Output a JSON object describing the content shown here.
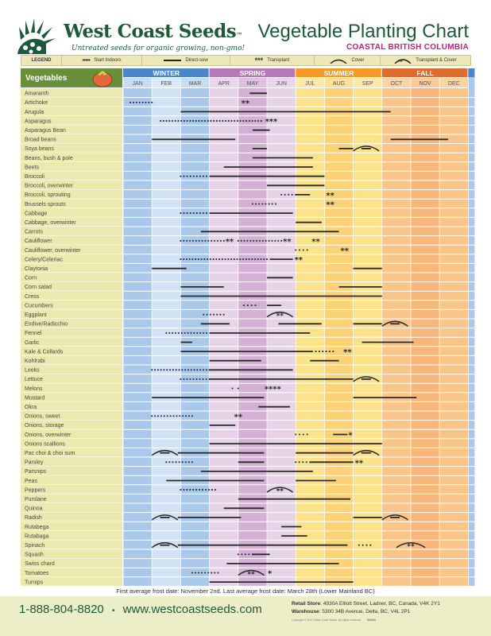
{
  "brand": {
    "name": "West Coast Seeds",
    "trademark": "™",
    "tagline": "Untreated seeds for organic growing, non-gmo!"
  },
  "header": {
    "title": "Vegetable Planting Chart",
    "subtitle": "COASTAL BRITISH COLUMBIA"
  },
  "legend": {
    "label": "LEGEND",
    "items": [
      {
        "symbol": "dots",
        "label": "Start Indoors"
      },
      {
        "symbol": "line",
        "label": "Direct-sow"
      },
      {
        "symbol": "asterisks",
        "label": "Transplant"
      },
      {
        "symbol": "arc",
        "label": "Cover"
      },
      {
        "symbol": "arc-asterisks",
        "label": "Transplant & Cover"
      }
    ]
  },
  "colors": {
    "brand_green": "#1e5a3a",
    "header_green": "#6a8f3a",
    "subtitle_magenta": "#b5247a",
    "winter": "#4a86c8",
    "spring": "#b47ab5",
    "summer": "#f39a2a",
    "fall": "#de6b2f"
  },
  "footer": {
    "frost_note": "First average frost date: November 2nd. Last average frost date: March 28th (Lower Mainland BC)",
    "phone": "1-888-804-8820",
    "separator": "•",
    "website": "www.westcoastseeds.com",
    "retail_label": "Retail Store",
    "retail_address": ": 4930A Elliott Street, Ladner, BC, Canada, V4K 2Y1",
    "warehouse_label": "Warehouse",
    "warehouse_address": ": 5300 34B Avenue, Delta, BC, V4L 2P1",
    "copyright": "Copyright © 2017 West Coast Seeds. All rights reserved.",
    "code": "SM400"
  },
  "chart_data": {
    "type": "table",
    "title": "Vegetable Planting Chart",
    "column_header": "Vegetables",
    "seasons": [
      {
        "name": "WINTER",
        "months": [
          "JAN",
          "FEB",
          "MAR"
        ]
      },
      {
        "name": "SPRING",
        "months": [
          "APR",
          "MAY",
          "JUN"
        ]
      },
      {
        "name": "SUMMER",
        "months": [
          "JUL",
          "AUG",
          "SEP"
        ]
      },
      {
        "name": "FALL",
        "months": [
          "OCT",
          "NOV",
          "DEC"
        ]
      }
    ],
    "months": [
      "JAN",
      "FEB",
      "MAR",
      "APR",
      "MAY",
      "JUN",
      "JUL",
      "AUG",
      "SEP",
      "OCT",
      "NOV",
      "DEC"
    ],
    "units": "month index (0 = start of Jan, 12 = end of Dec)",
    "rows": [
      {
        "name": "Amaranth",
        "marks": [
          {
            "t": "line",
            "s": 4.4,
            "e": 5.0
          }
        ]
      },
      {
        "name": "Artichoke",
        "marks": [
          {
            "t": "dots",
            "s": 0.25,
            "e": 1.0
          },
          {
            "t": "ast",
            "s": 4.1,
            "e": 4.4,
            "n": 2
          }
        ]
      },
      {
        "name": "Arugula",
        "marks": [
          {
            "t": "line",
            "s": 2.0,
            "e": 9.3
          }
        ]
      },
      {
        "name": "Asparagus",
        "marks": [
          {
            "t": "dots",
            "s": 1.3,
            "e": 4.8
          },
          {
            "t": "ast",
            "s": 4.9,
            "e": 5.4,
            "n": 3
          }
        ]
      },
      {
        "name": "Asparagus Bean",
        "marks": [
          {
            "t": "line",
            "s": 4.5,
            "e": 5.1
          }
        ]
      },
      {
        "name": "Broad beans",
        "marks": [
          {
            "t": "line",
            "s": 1.0,
            "e": 3.9
          },
          {
            "t": "line",
            "s": 9.3,
            "e": 11.3
          }
        ]
      },
      {
        "name": "Soya beans",
        "marks": [
          {
            "t": "line",
            "s": 4.5,
            "e": 5.0
          },
          {
            "t": "line",
            "s": 7.5,
            "e": 8.0
          },
          {
            "t": "cover",
            "s": 8.0,
            "e": 8.9
          }
        ]
      },
      {
        "name": "Beans, bush & pole",
        "marks": [
          {
            "t": "line",
            "s": 4.5,
            "e": 6.6
          }
        ]
      },
      {
        "name": "Beets",
        "marks": [
          {
            "t": "line",
            "s": 3.5,
            "e": 6.6
          }
        ]
      },
      {
        "name": "Broccoli",
        "marks": [
          {
            "t": "dots",
            "s": 2.0,
            "e": 2.9
          },
          {
            "t": "line",
            "s": 3.0,
            "e": 7.0
          }
        ]
      },
      {
        "name": "Broccoli, overwinter",
        "marks": [
          {
            "t": "line",
            "s": 5.0,
            "e": 7.0
          }
        ]
      },
      {
        "name": "Broccoli, sprouting",
        "marks": [
          {
            "t": "dots",
            "s": 5.5,
            "e": 6.0
          },
          {
            "t": "line",
            "s": 6.0,
            "e": 6.5
          },
          {
            "t": "ast",
            "s": 7.0,
            "e": 7.4,
            "n": 2
          }
        ]
      },
      {
        "name": "Brussels sprouts",
        "marks": [
          {
            "t": "dots",
            "s": 4.5,
            "e": 5.3
          },
          {
            "t": "ast",
            "s": 7.0,
            "e": 7.4,
            "n": 2
          }
        ]
      },
      {
        "name": "Cabbage",
        "marks": [
          {
            "t": "dots",
            "s": 2.0,
            "e": 2.9
          },
          {
            "t": "line",
            "s": 3.0,
            "e": 5.9
          }
        ]
      },
      {
        "name": "Cabbage, overwinter",
        "marks": [
          {
            "t": "line",
            "s": 6.0,
            "e": 6.9
          }
        ]
      },
      {
        "name": "Carrots",
        "marks": [
          {
            "t": "line",
            "s": 2.7,
            "e": 7.5
          }
        ]
      },
      {
        "name": "Cauliflower",
        "marks": [
          {
            "t": "dots",
            "s": 2.0,
            "e": 3.5
          },
          {
            "t": "ast",
            "s": 3.5,
            "e": 3.9,
            "n": 2
          },
          {
            "t": "dots",
            "s": 4.0,
            "e": 5.5
          },
          {
            "t": "ast",
            "s": 5.5,
            "e": 5.9,
            "n": 2
          },
          {
            "t": "ast",
            "s": 6.5,
            "e": 6.9,
            "n": 2
          }
        ]
      },
      {
        "name": "Cauliflower, overwinter",
        "marks": [
          {
            "t": "dots",
            "s": 6.0,
            "e": 6.4
          },
          {
            "t": "ast",
            "s": 7.5,
            "e": 7.9,
            "n": 2
          }
        ]
      },
      {
        "name": "Celery/Celeriac",
        "marks": [
          {
            "t": "dots",
            "s": 2.0,
            "e": 5.0
          },
          {
            "t": "line",
            "s": 5.1,
            "e": 5.9
          },
          {
            "t": "ast",
            "s": 5.9,
            "e": 6.3,
            "n": 2
          }
        ]
      },
      {
        "name": "Claytonia",
        "marks": [
          {
            "t": "line",
            "s": 1.0,
            "e": 2.2
          },
          {
            "t": "line",
            "s": 8.0,
            "e": 9.0
          }
        ]
      },
      {
        "name": "Corn",
        "marks": [
          {
            "t": "line",
            "s": 5.0,
            "e": 5.9
          }
        ]
      },
      {
        "name": "Corn salad",
        "marks": [
          {
            "t": "line",
            "s": 2.0,
            "e": 3.5
          },
          {
            "t": "line",
            "s": 7.5,
            "e": 9.0
          }
        ]
      },
      {
        "name": "Cress",
        "marks": [
          {
            "t": "line",
            "s": 2.0,
            "e": 9.0
          }
        ]
      },
      {
        "name": "Cucumbers",
        "marks": [
          {
            "t": "dots",
            "s": 4.2,
            "e": 4.6
          },
          {
            "t": "line",
            "s": 5.0,
            "e": 5.5
          }
        ]
      },
      {
        "name": "Eggplant",
        "marks": [
          {
            "t": "dots",
            "s": 2.8,
            "e": 3.5
          },
          {
            "t": "cover-ast",
            "s": 5.0,
            "e": 5.9
          }
        ]
      },
      {
        "name": "Endive/Radicchio",
        "marks": [
          {
            "t": "line",
            "s": 2.7,
            "e": 3.7
          },
          {
            "t": "line",
            "s": 5.4,
            "e": 6.9
          },
          {
            "t": "line",
            "s": 8.0,
            "e": 9.0
          },
          {
            "t": "cover",
            "s": 9.0,
            "e": 9.9
          }
        ]
      },
      {
        "name": "Fennel",
        "marks": [
          {
            "t": "dots",
            "s": 1.5,
            "e": 2.9
          },
          {
            "t": "line",
            "s": 3.0,
            "e": 6.5
          }
        ]
      },
      {
        "name": "Garlic",
        "marks": [
          {
            "t": "line",
            "s": 2.0,
            "e": 2.4
          },
          {
            "t": "line",
            "s": 8.3,
            "e": 10.1
          }
        ]
      },
      {
        "name": "Kale & Collards",
        "marks": [
          {
            "t": "line",
            "s": 2.0,
            "e": 6.6
          },
          {
            "t": "dots",
            "s": 6.7,
            "e": 7.3
          },
          {
            "t": "ast",
            "s": 7.6,
            "e": 8.0,
            "n": 2
          }
        ]
      },
      {
        "name": "Kohlrabi",
        "marks": [
          {
            "t": "line",
            "s": 3.0,
            "e": 4.8
          },
          {
            "t": "line",
            "s": 6.5,
            "e": 7.5
          }
        ]
      },
      {
        "name": "Leeks",
        "marks": [
          {
            "t": "dots",
            "s": 1.0,
            "e": 3.0
          },
          {
            "t": "line",
            "s": 3.0,
            "e": 5.9
          }
        ]
      },
      {
        "name": "Lettuce",
        "marks": [
          {
            "t": "dots",
            "s": 2.0,
            "e": 3.0
          },
          {
            "t": "line",
            "s": 3.0,
            "e": 8.0
          },
          {
            "t": "cover",
            "s": 8.0,
            "e": 8.9
          }
        ]
      },
      {
        "name": "Melons",
        "marks": [
          {
            "t": "dots",
            "s": 3.8,
            "e": 4.0
          },
          {
            "t": "ast",
            "s": 4.8,
            "e": 5.6,
            "n": 4
          }
        ]
      },
      {
        "name": "Mustard",
        "marks": [
          {
            "t": "line",
            "s": 1.0,
            "e": 4.9
          },
          {
            "t": "line",
            "s": 8.0,
            "e": 10.2
          }
        ]
      },
      {
        "name": "Okra",
        "marks": [
          {
            "t": "line",
            "s": 4.7,
            "e": 5.8
          }
        ]
      },
      {
        "name": "Onions, sweet",
        "marks": [
          {
            "t": "dots",
            "s": 1.0,
            "e": 2.4
          },
          {
            "t": "ast",
            "s": 3.8,
            "e": 4.2,
            "n": 2
          }
        ]
      },
      {
        "name": "Onions, storage",
        "marks": [
          {
            "t": "line",
            "s": 3.0,
            "e": 3.9
          }
        ]
      },
      {
        "name": "Onions, overwinter",
        "marks": [
          {
            "t": "dots",
            "s": 6.0,
            "e": 6.4
          },
          {
            "t": "line",
            "s": 7.3,
            "e": 7.8
          },
          {
            "t": "ast",
            "s": 7.8,
            "e": 8.0,
            "n": 1
          }
        ]
      },
      {
        "name": "Onions scallions",
        "marks": [
          {
            "t": "line",
            "s": 3.0,
            "e": 9.0
          }
        ]
      },
      {
        "name": "Pac choi & choi sum",
        "marks": [
          {
            "t": "cover",
            "s": 1.0,
            "e": 1.9
          },
          {
            "t": "line",
            "s": 1.9,
            "e": 4.9
          },
          {
            "t": "line",
            "s": 6.0,
            "e": 8.0
          },
          {
            "t": "cover",
            "s": 8.0,
            "e": 8.9
          }
        ]
      },
      {
        "name": "Parsley",
        "marks": [
          {
            "t": "dots",
            "s": 1.5,
            "e": 2.4
          },
          {
            "t": "line",
            "s": 4.0,
            "e": 4.9
          },
          {
            "t": "dots",
            "s": 6.0,
            "e": 6.5
          },
          {
            "t": "line",
            "s": 6.5,
            "e": 8.0
          },
          {
            "t": "ast",
            "s": 8.0,
            "e": 8.4,
            "n": 2
          }
        ]
      },
      {
        "name": "Parsnips",
        "marks": [
          {
            "t": "line",
            "s": 2.7,
            "e": 6.6
          }
        ]
      },
      {
        "name": "Peas",
        "marks": [
          {
            "t": "line",
            "s": 1.5,
            "e": 4.9
          },
          {
            "t": "line",
            "s": 6.0,
            "e": 7.4
          }
        ]
      },
      {
        "name": "Peppers",
        "marks": [
          {
            "t": "dots",
            "s": 2.0,
            "e": 3.2
          },
          {
            "t": "cover-ast",
            "s": 5.0,
            "e": 5.9
          }
        ]
      },
      {
        "name": "Purslane",
        "marks": [
          {
            "t": "line",
            "s": 4.0,
            "e": 7.9
          }
        ]
      },
      {
        "name": "Quinoa",
        "marks": [
          {
            "t": "line",
            "s": 3.5,
            "e": 4.9
          }
        ]
      },
      {
        "name": "Radish",
        "marks": [
          {
            "t": "cover",
            "s": 1.0,
            "e": 1.9
          },
          {
            "t": "line",
            "s": 1.9,
            "e": 4.1
          },
          {
            "t": "line",
            "s": 8.0,
            "e": 9.0
          },
          {
            "t": "cover",
            "s": 9.0,
            "e": 9.9
          }
        ]
      },
      {
        "name": "Rutabega",
        "marks": [
          {
            "t": "line",
            "s": 5.5,
            "e": 6.2
          }
        ]
      },
      {
        "name": "Rutabaga",
        "marks": [
          {
            "t": "line",
            "s": 5.5,
            "e": 6.4
          }
        ]
      },
      {
        "name": "Spinach",
        "marks": [
          {
            "t": "cover",
            "s": 1.0,
            "e": 1.9
          },
          {
            "t": "line",
            "s": 1.9,
            "e": 7.8
          },
          {
            "t": "dots",
            "s": 8.2,
            "e": 8.6
          },
          {
            "t": "cover-ast",
            "s": 9.5,
            "e": 10.5
          }
        ]
      },
      {
        "name": "Squash",
        "marks": [
          {
            "t": "dots",
            "s": 4.0,
            "e": 4.5
          },
          {
            "t": "line",
            "s": 4.5,
            "e": 5.1
          }
        ]
      },
      {
        "name": "Swiss chard",
        "marks": [
          {
            "t": "line",
            "s": 3.6,
            "e": 7.5
          }
        ]
      },
      {
        "name": "Tomatoes",
        "marks": [
          {
            "t": "dots",
            "s": 2.4,
            "e": 3.3
          },
          {
            "t": "cover-ast",
            "s": 4.0,
            "e": 4.9
          },
          {
            "t": "ast",
            "s": 5.0,
            "e": 5.2,
            "n": 1
          }
        ]
      },
      {
        "name": "Turnips",
        "marks": [
          {
            "t": "line",
            "s": 3.0,
            "e": 8.0
          }
        ]
      }
    ]
  }
}
